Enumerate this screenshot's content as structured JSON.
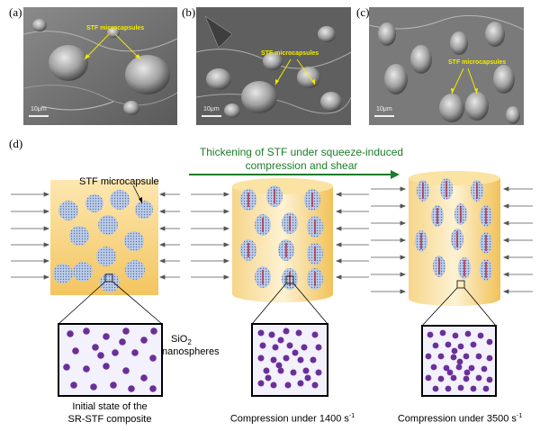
{
  "panels": {
    "a": {
      "letter": "(a)",
      "scale": "10μm",
      "annotation": "STF microcapsules"
    },
    "b": {
      "letter": "(b)",
      "scale": "10μm",
      "annotation": "STF microcapsules"
    },
    "c": {
      "letter": "(c)",
      "scale": "10μm",
      "annotation": "STF microcapsules"
    },
    "d": {
      "letter": "(d)"
    }
  },
  "diagram": {
    "arrow_text_line1": "Thickening of STF under squeeze-induced",
    "arrow_text_line2": "compression and shear",
    "microcapsule_label": "STF microcapsule",
    "nanosphere_label_1": "SiO",
    "nanosphere_label_sub": "2",
    "nanosphere_label_2": "nanospheres",
    "state1_line1": "Initial state of the",
    "state1_line2": "SR-STF composite",
    "state2_text": "Compression under 1400 s",
    "state2_exp": "-1",
    "state3_text": "Compression under 3500 s",
    "state3_exp": "-1"
  },
  "colors": {
    "green": "#1d7c2a",
    "annotation_yellow": "#f2ea00",
    "particle_purple": "#6a2f99",
    "capsule_blue": "#b9cbe6",
    "force_red": "#b3122f",
    "matrix_orange": "#f3c560"
  }
}
